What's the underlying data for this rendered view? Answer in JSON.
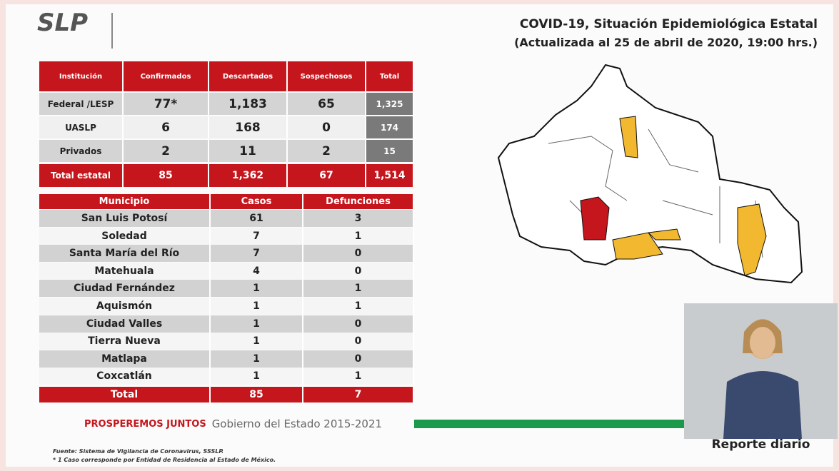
{
  "logo": {
    "mark": "SLP"
  },
  "header": {
    "title": "COVID-19, Situación Epidemiológica Estatal",
    "subtitle": "(Actualizada al 25 de abril de 2020, 19:00 hrs.)"
  },
  "institutions": {
    "columns": [
      "Institución",
      "Confirmados",
      "Descartados",
      "Sospechosos",
      "Total"
    ],
    "rows": [
      [
        "Federal /LESP",
        "77*",
        "1,183",
        "65",
        "1,325"
      ],
      [
        "UASLP",
        "6",
        "168",
        "0",
        "174"
      ],
      [
        "Privados",
        "2",
        "11",
        "2",
        "15"
      ]
    ],
    "total": [
      "Total estatal",
      "85",
      "1,362",
      "67",
      "1,514"
    ]
  },
  "municipalities": {
    "columns": [
      "Municipio",
      "Casos",
      "Defunciones"
    ],
    "rows": [
      [
        "San Luis Potosí",
        "61",
        "3"
      ],
      [
        "Soledad",
        "7",
        "1"
      ],
      [
        "Santa María del Río",
        "7",
        "0"
      ],
      [
        "Matehuala",
        "4",
        "0"
      ],
      [
        "Ciudad Fernández",
        "1",
        "1"
      ],
      [
        "Aquismón",
        "1",
        "1"
      ],
      [
        "Ciudad Valles",
        "1",
        "0"
      ],
      [
        "Tierra Nueva",
        "1",
        "0"
      ],
      [
        "Matlapa",
        "1",
        "0"
      ],
      [
        "Coxcatlán",
        "1",
        "1"
      ]
    ],
    "total": [
      "Total",
      "85",
      "7"
    ]
  },
  "footer": {
    "slogan": "PROSPEREMOS JUNTOS",
    "government": "Gobierno del Estado 2015-2021",
    "source": "Fuente: Sistema de Vigilancia de Coronavirus, SSSLP.",
    "note": "* 1 Caso corresponde por Entidad de Residencia al Estado de México."
  },
  "video": {
    "caption": "Reporte diario"
  }
}
